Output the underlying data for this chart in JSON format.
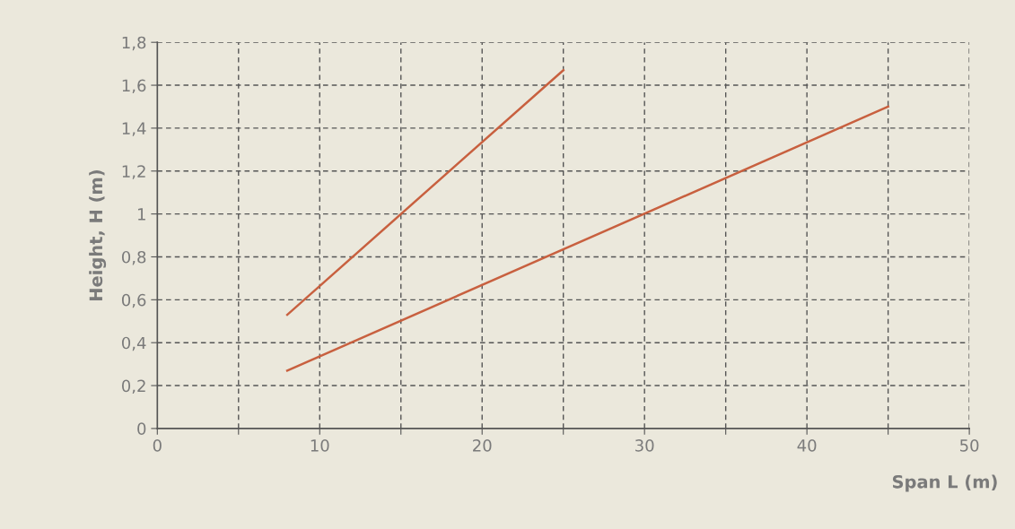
{
  "chart_data": {
    "type": "line",
    "xlabel": "Span L (m)",
    "ylabel": "Height, H (m)",
    "series": [
      {
        "color": "#c8603f",
        "x": [
          8,
          25
        ],
        "values": [
          0.53,
          1.67
        ]
      },
      {
        "color": "#c8603f",
        "x": [
          8,
          45
        ],
        "values": [
          0.27,
          1.5
        ]
      }
    ],
    "xlim": [
      0,
      50
    ],
    "ylim": [
      0,
      1.8
    ],
    "xticks": [
      0,
      {
        "value": 5,
        "label": null
      },
      10,
      {
        "value": 15,
        "label": null
      },
      20,
      {
        "value": 25,
        "label": null
      },
      30,
      {
        "value": 35,
        "label": null
      },
      40,
      {
        "value": 45,
        "label": null
      },
      50
    ],
    "yticks": [
      0,
      {
        "value": 0.2,
        "label": "0,2"
      },
      {
        "value": 0.4,
        "label": "0,4"
      },
      {
        "value": 0.6,
        "label": "0,6"
      },
      {
        "value": 0.8,
        "label": "0,8"
      },
      1,
      {
        "value": 1.2,
        "label": "1,2"
      },
      {
        "value": 1.4,
        "label": "1,4"
      },
      {
        "value": 1.6,
        "label": "1,6"
      },
      {
        "value": 1.8,
        "label": "1,8"
      }
    ],
    "grid": true,
    "legend": false,
    "marker": "none",
    "line_style": "solid"
  }
}
